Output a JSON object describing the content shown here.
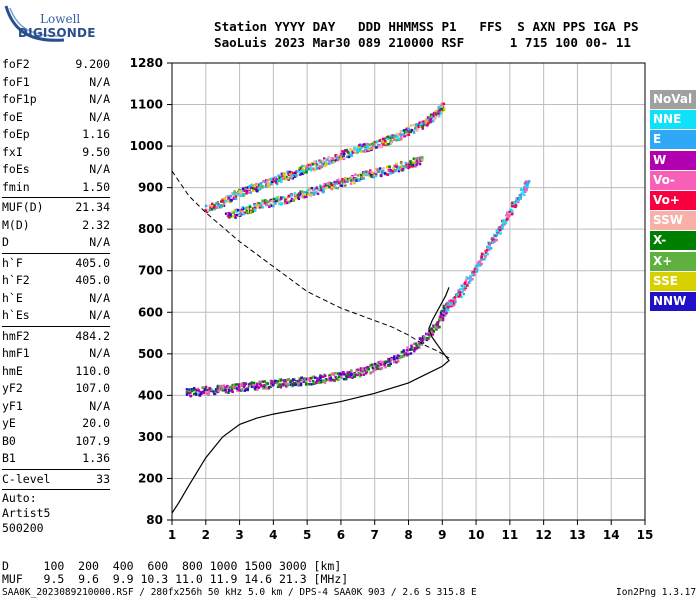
{
  "logo": {
    "line1": "Lowell",
    "line2": "DIGISONDE"
  },
  "header": {
    "line1": "Station YYYY DAY   DDD HHMMSS P1   FFS  S AXN PPS IGA PS",
    "line2": "SaoLuis 2023 Mar30 089 210000 RSF      1 715 100 00- 11"
  },
  "scaled_params": [
    {
      "k": "foF2",
      "v": "9.200"
    },
    {
      "k": "foF1",
      "v": "N/A"
    },
    {
      "k": "foF1p",
      "v": "N/A"
    },
    {
      "k": "foE",
      "v": "N/A"
    },
    {
      "k": "foEp",
      "v": "1.16"
    },
    {
      "k": "fxI",
      "v": "9.50"
    },
    {
      "k": "foEs",
      "v": "N/A"
    },
    {
      "k": "fmin",
      "v": "1.50"
    },
    {
      "k": "MUF(D)",
      "v": "21.34"
    },
    {
      "k": "M(D)",
      "v": "2.32"
    },
    {
      "k": "D",
      "v": "N/A"
    },
    {
      "k": "h`F",
      "v": "405.0"
    },
    {
      "k": "h`F2",
      "v": "405.0"
    },
    {
      "k": "h`E",
      "v": "N/A"
    },
    {
      "k": "h`Es",
      "v": "N/A"
    },
    {
      "k": "hmF2",
      "v": "484.2"
    },
    {
      "k": "hmF1",
      "v": "N/A"
    },
    {
      "k": "hmE",
      "v": "110.0"
    },
    {
      "k": "yF2",
      "v": "107.0"
    },
    {
      "k": "yF1",
      "v": "N/A"
    },
    {
      "k": "yE",
      "v": "20.0"
    },
    {
      "k": "B0",
      "v": "107.9"
    },
    {
      "k": "B1",
      "v": "1.36"
    },
    {
      "k": "C-level",
      "v": "33"
    }
  ],
  "auto": {
    "line1": "Auto:",
    "line2": "Artist5",
    "line3": "500200"
  },
  "legend": [
    {
      "label": "NoVal",
      "color": "#a0a0a0"
    },
    {
      "label": "NNE",
      "color": "#10e0f8"
    },
    {
      "label": "E",
      "color": "#30a8f8"
    },
    {
      "label": "W",
      "color": "#b000b0"
    },
    {
      "label": "Vo-",
      "color": "#f860b8"
    },
    {
      "label": "Vo+",
      "color": "#f80040"
    },
    {
      "label": "SSW",
      "color": "#f8b0a8"
    },
    {
      "label": "X-",
      "color": "#008000"
    },
    {
      "label": "X+",
      "color": "#60b040"
    },
    {
      "label": "SSE",
      "color": "#d8d000"
    },
    {
      "label": "NNW",
      "color": "#2010c8"
    }
  ],
  "footer": {
    "muf_line1": "D     100  200  400  600  800 1000 1500 3000 [km]",
    "muf_line2": "MUF   9.5  9.6  9.9 10.3 11.0 11.9 14.6 21.3 [MHz]",
    "file_info": "SAA0K_2023089210000.RSF / 280fx256h 50 kHz 5.0 km / DPS-4 SAA0K 903 / 2.6 S 315.8 E",
    "version": "Ion2Png 1.3.17"
  },
  "chart_data": {
    "type": "scatter",
    "x_ticks": [
      1,
      2,
      3,
      4,
      5,
      6,
      7,
      8,
      9,
      10,
      11,
      12,
      13,
      14,
      15
    ],
    "y_ticks": [
      80,
      200,
      300,
      400,
      500,
      600,
      700,
      800,
      900,
      1000,
      1100,
      1280
    ],
    "xlim": [
      1,
      15
    ],
    "ylim": [
      80,
      1280
    ],
    "grid": true,
    "legend_position": "right",
    "series": [
      {
        "color_key": "trace-o-mode",
        "points": [
          [
            1.4,
            410
          ],
          [
            1.8,
            412
          ],
          [
            2.2,
            415
          ],
          [
            2.6,
            418
          ],
          [
            3.0,
            422
          ],
          [
            3.4,
            425
          ],
          [
            3.8,
            428
          ],
          [
            4.2,
            432
          ],
          [
            4.6,
            435
          ],
          [
            5.0,
            438
          ],
          [
            5.4,
            442
          ],
          [
            5.8,
            447
          ],
          [
            6.2,
            452
          ],
          [
            6.6,
            460
          ],
          [
            7.0,
            470
          ],
          [
            7.4,
            483
          ],
          [
            7.8,
            500
          ],
          [
            8.2,
            522
          ],
          [
            8.5,
            545
          ],
          [
            8.8,
            570
          ],
          [
            9.0,
            600
          ],
          [
            9.1,
            615
          ]
        ]
      },
      {
        "color_key": "trace-x-mode",
        "points": [
          [
            9.1,
            615
          ],
          [
            9.3,
            630
          ],
          [
            9.6,
            660
          ],
          [
            9.9,
            700
          ],
          [
            10.2,
            740
          ],
          [
            10.5,
            780
          ],
          [
            10.8,
            820
          ],
          [
            11.1,
            860
          ],
          [
            11.4,
            900
          ],
          [
            11.5,
            915
          ]
        ]
      },
      {
        "color_key": "trace-multihop",
        "points": [
          [
            2.0,
            850
          ],
          [
            2.5,
            870
          ],
          [
            3.0,
            890
          ],
          [
            3.5,
            905
          ],
          [
            4.0,
            920
          ],
          [
            4.5,
            935
          ],
          [
            5.0,
            950
          ],
          [
            5.5,
            965
          ],
          [
            6.0,
            980
          ],
          [
            6.5,
            995
          ],
          [
            7.0,
            1005
          ],
          [
            7.5,
            1020
          ],
          [
            8.0,
            1040
          ],
          [
            8.5,
            1060
          ],
          [
            8.8,
            1080
          ],
          [
            9.0,
            1100
          ]
        ]
      },
      {
        "color_key": "trace-multihop-lower",
        "points": [
          [
            2.6,
            835
          ],
          [
            3.2,
            850
          ],
          [
            3.8,
            865
          ],
          [
            4.4,
            875
          ],
          [
            5.0,
            890
          ],
          [
            5.6,
            905
          ],
          [
            6.2,
            920
          ],
          [
            6.8,
            935
          ],
          [
            7.4,
            945
          ],
          [
            8.0,
            960
          ],
          [
            8.4,
            970
          ]
        ]
      }
    ],
    "profile_curve": [
      [
        1.0,
        100
      ],
      [
        1.2,
        130
      ],
      [
        1.5,
        180
      ],
      [
        2.0,
        250
      ],
      [
        2.5,
        300
      ],
      [
        3.0,
        330
      ],
      [
        3.5,
        345
      ],
      [
        4.0,
        355
      ],
      [
        5.0,
        370
      ],
      [
        6.0,
        385
      ],
      [
        7.0,
        405
      ],
      [
        8.0,
        430
      ],
      [
        8.5,
        450
      ],
      [
        9.0,
        470
      ],
      [
        9.2,
        484
      ],
      [
        9.0,
        505
      ],
      [
        8.7,
        540
      ],
      [
        8.6,
        560
      ],
      [
        8.7,
        580
      ],
      [
        8.9,
        610
      ],
      [
        9.1,
        640
      ],
      [
        9.2,
        660
      ]
    ],
    "muf_curve": [
      [
        1.0,
        940
      ],
      [
        1.5,
        880
      ],
      [
        2.0,
        840
      ],
      [
        3.0,
        770
      ],
      [
        4.0,
        710
      ],
      [
        5.0,
        650
      ],
      [
        6.0,
        610
      ],
      [
        7.0,
        580
      ],
      [
        7.5,
        565
      ],
      [
        8.0,
        545
      ],
      [
        8.5,
        520
      ],
      [
        8.9,
        505
      ],
      [
        9.2,
        490
      ]
    ]
  }
}
